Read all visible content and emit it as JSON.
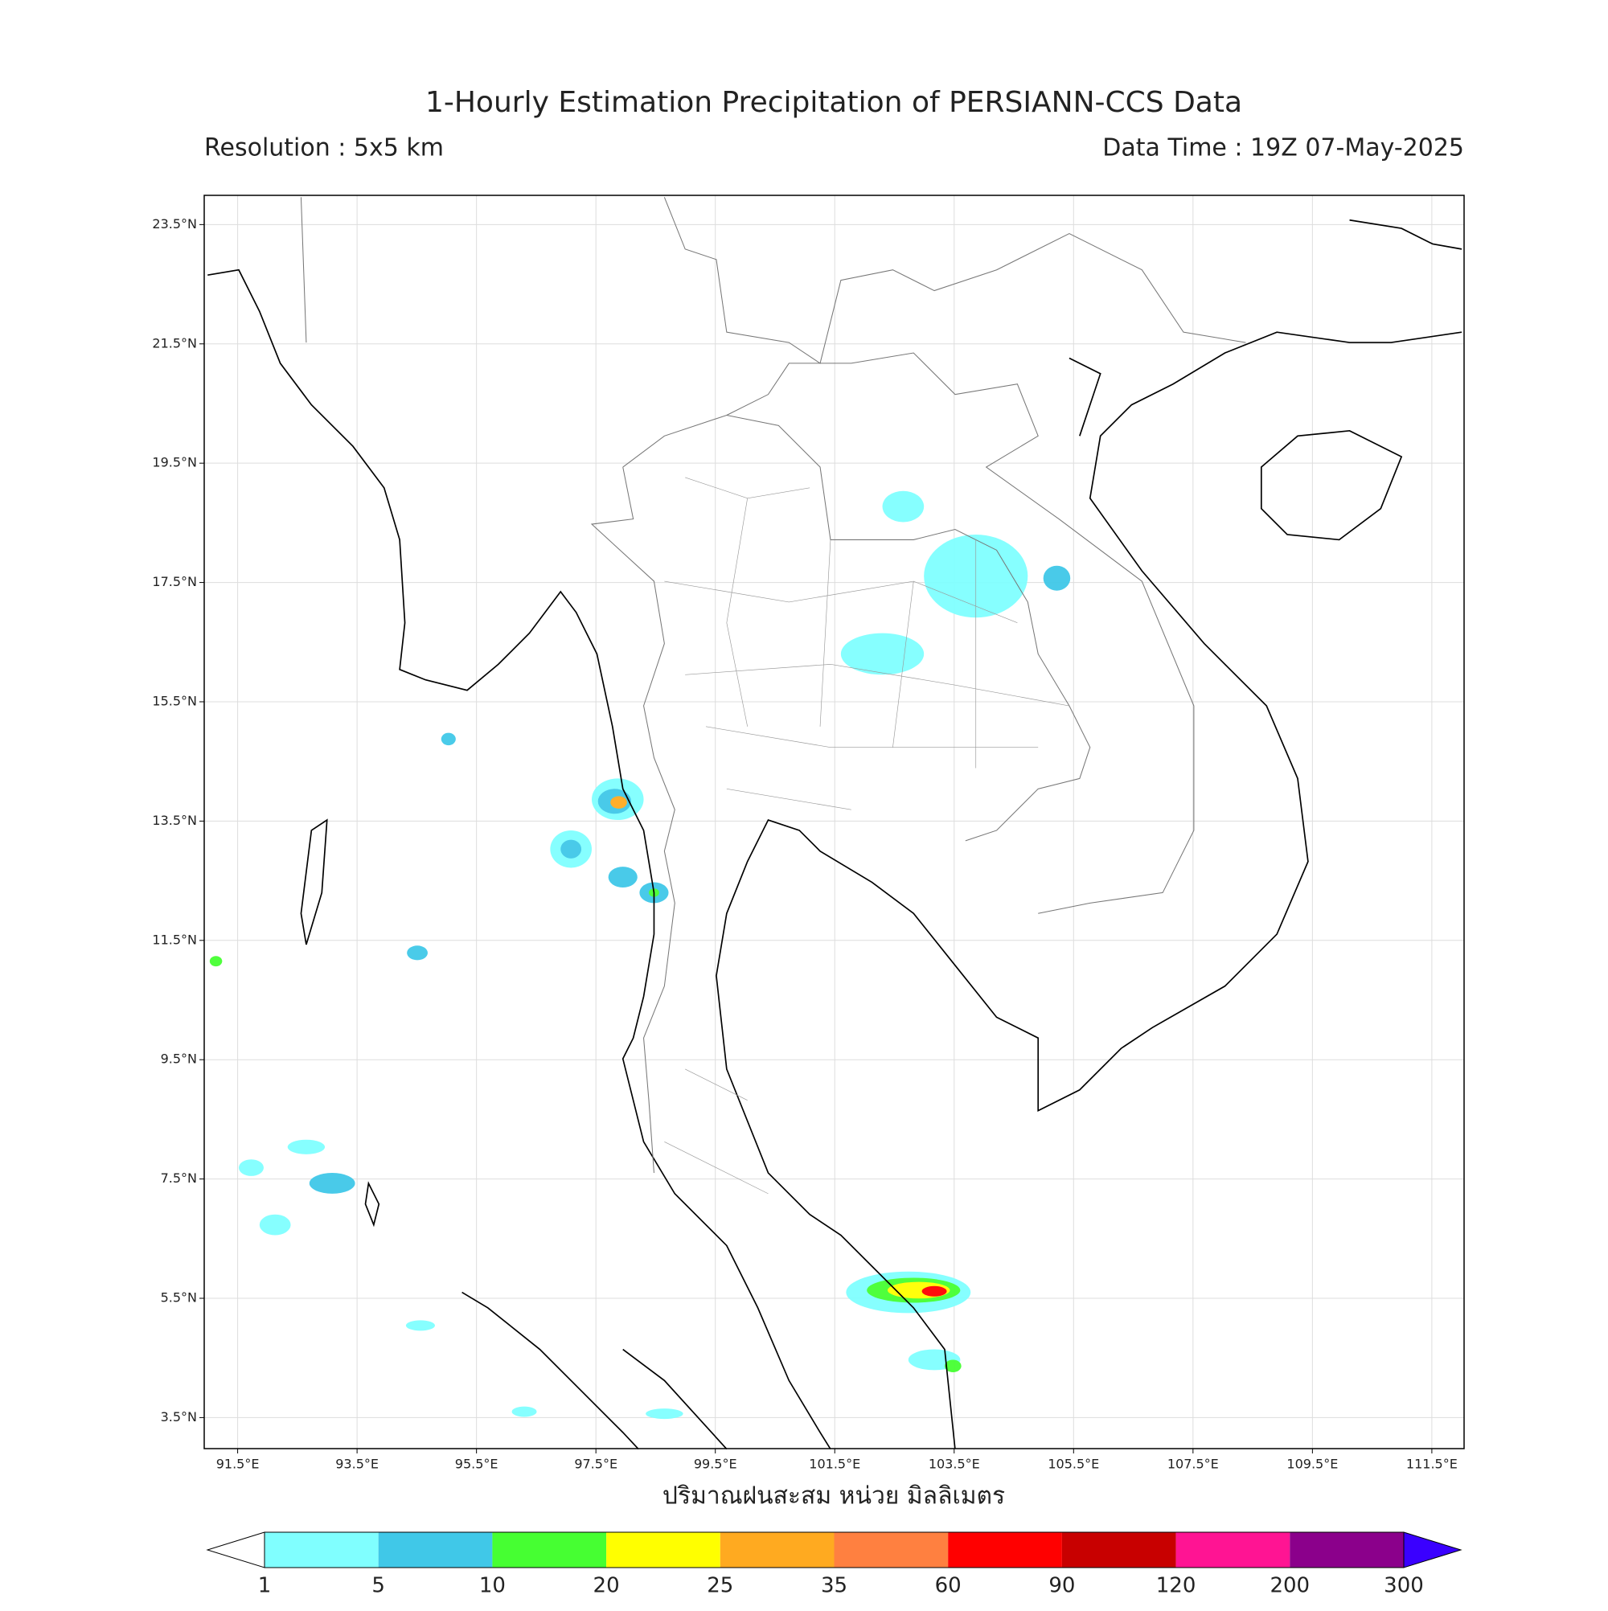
{
  "header": {
    "title": "1-Hourly Estimation Precipitation of PERSIANN-CCS Data",
    "resolution": "Resolution : 5x5 km",
    "data_time": "Data Time : 19Z 07-May-2025"
  },
  "map": {
    "xlim": [
      90.94,
      112.04
    ],
    "ylim": [
      2.98,
      23.99
    ],
    "xticks": [
      {
        "value": 91.5,
        "label": "91.5°E"
      },
      {
        "value": 93.5,
        "label": "93.5°E"
      },
      {
        "value": 95.5,
        "label": "95.5°E"
      },
      {
        "value": 97.5,
        "label": "97.5°E"
      },
      {
        "value": 99.5,
        "label": "99.5°E"
      },
      {
        "value": 101.5,
        "label": "101.5°E"
      },
      {
        "value": 103.5,
        "label": "103.5°E"
      },
      {
        "value": 105.5,
        "label": "105.5°E"
      },
      {
        "value": 107.5,
        "label": "107.5°E"
      },
      {
        "value": 109.5,
        "label": "109.5°E"
      },
      {
        "value": 111.5,
        "label": "111.5°E"
      }
    ],
    "yticks": [
      {
        "value": 3.5,
        "label": "3.5°N"
      },
      {
        "value": 5.5,
        "label": "5.5°N"
      },
      {
        "value": 7.5,
        "label": "7.5°N"
      },
      {
        "value": 9.5,
        "label": "9.5°N"
      },
      {
        "value": 11.5,
        "label": "11.5°N"
      },
      {
        "value": 13.5,
        "label": "13.5°N"
      },
      {
        "value": 15.5,
        "label": "15.5°N"
      },
      {
        "value": 17.5,
        "label": "17.5°N"
      },
      {
        "value": 19.5,
        "label": "19.5°N"
      },
      {
        "value": 21.5,
        "label": "21.5°N"
      },
      {
        "value": 23.5,
        "label": "23.5°N"
      }
    ],
    "x_label": "ปริมาณฝนสะสม หน่วย มิลลิเมตร",
    "grid": true
  },
  "colorbar": {
    "levels": [
      1,
      5,
      10,
      20,
      25,
      35,
      60,
      90,
      120,
      200,
      300
    ],
    "colors": [
      "#80ffff",
      "#40c8e8",
      "#46ff32",
      "#ffff00",
      "#ffaa20",
      "#ff8040",
      "#ff0000",
      "#c80000",
      "#ff1493",
      "#8b008b"
    ],
    "under_color": "#ffffff",
    "over_color": "#3a00ff"
  }
}
